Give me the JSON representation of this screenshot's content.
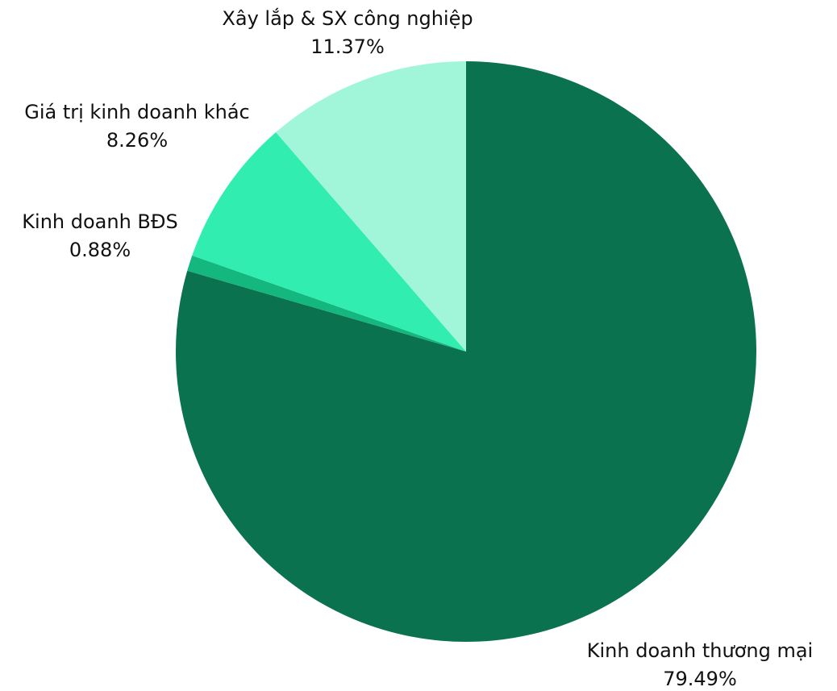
{
  "chart_data": {
    "type": "pie",
    "title": "",
    "slices": [
      {
        "label": "Kinh doanh thương mại",
        "value": 79.49,
        "value_label": "79.49%",
        "color": "#0b7250"
      },
      {
        "label": "Kinh doanh BĐS",
        "value": 0.88,
        "value_label": "0.88%",
        "color": "#14b77d"
      },
      {
        "label": "Giá trị kinh doanh khác",
        "value": 8.26,
        "value_label": "8.26%",
        "color": "#32edb0"
      },
      {
        "label": "Xây lắp & SX công nghiệp",
        "value": 11.37,
        "value_label": "11.37%",
        "color": "#a1f6da"
      }
    ],
    "start": "12 o'clock",
    "direction": "clockwise",
    "legend": "none"
  }
}
